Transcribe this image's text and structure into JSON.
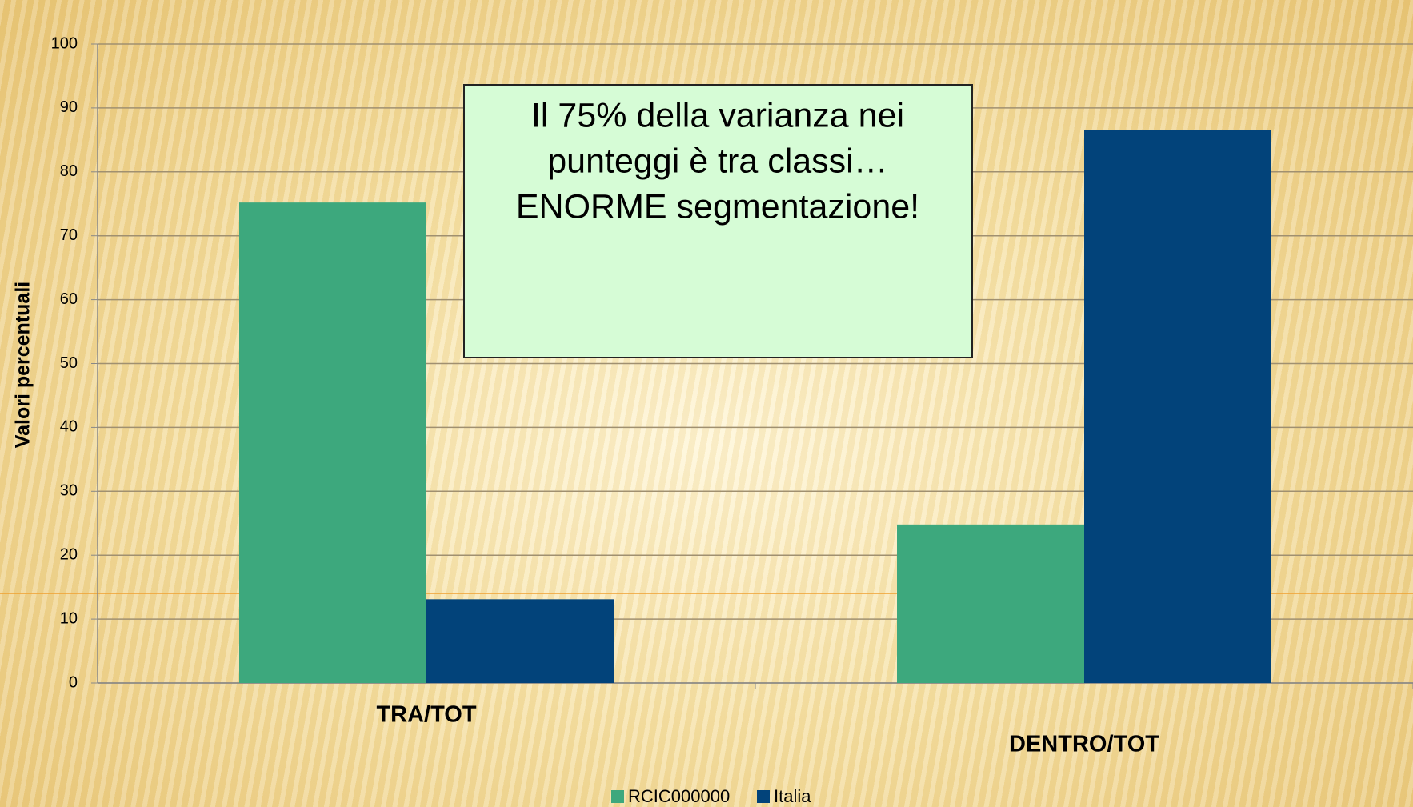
{
  "chart_data": {
    "type": "bar",
    "y_label": "Valori percentuali",
    "categories": [
      "TRA/TOT",
      "DENTRO/TOT"
    ],
    "series": [
      {
        "name": "RCIC000000",
        "color": "#3da87d",
        "values": [
          75.2,
          24.8
        ]
      },
      {
        "name": "Italia",
        "color": "#02437a",
        "values": [
          13.1,
          86.6
        ]
      }
    ],
    "ylim": [
      0,
      100
    ],
    "yticks": [
      0,
      10,
      20,
      30,
      40,
      50,
      60,
      70,
      80,
      90,
      100
    ],
    "grid": true,
    "annotation": [
      "Il 75% della varianza nei",
      "punteggi è tra classi…",
      "ENORME segmentazione!"
    ],
    "legend": "bottom"
  }
}
